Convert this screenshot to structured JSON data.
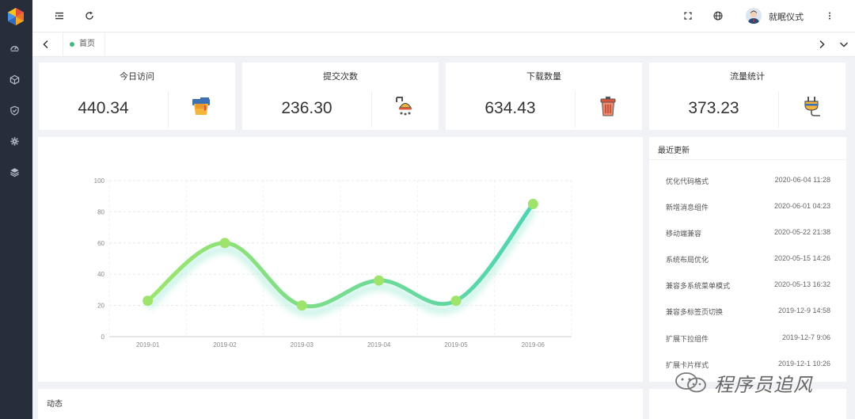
{
  "header": {
    "username": "就眠仪式"
  },
  "tabs": [
    {
      "label": "首页"
    }
  ],
  "stats": [
    {
      "title": "今日访问",
      "value": "440.34",
      "icon": "paint-bucket-icon"
    },
    {
      "title": "提交次数",
      "value": "236.30",
      "icon": "shower-icon"
    },
    {
      "title": "下载数量",
      "value": "634.43",
      "icon": "trash-can-icon"
    },
    {
      "title": "流量统计",
      "value": "373.23",
      "icon": "plug-icon"
    }
  ],
  "chart_data": {
    "type": "line",
    "categories": [
      "2019-01",
      "2019-02",
      "2019-03",
      "2019-04",
      "2019-05",
      "2019-06"
    ],
    "series": [
      {
        "values": [
          23,
          60,
          20,
          36,
          23,
          85
        ]
      }
    ],
    "ylim": [
      0,
      100
    ],
    "yticks": [
      "0",
      "20",
      "40",
      "60",
      "80",
      "100"
    ],
    "smooth": true,
    "grid": true,
    "colors": {
      "start": "#9ee46c",
      "end": "#4fd3b3",
      "point": "#9ee46c"
    }
  },
  "recent": {
    "title": "最近更新",
    "items": [
      {
        "name": "优化代码格式",
        "time": "2020-06-04 11:28"
      },
      {
        "name": "新增消息组件",
        "time": "2020-06-01 04:23"
      },
      {
        "name": "移动端兼容",
        "time": "2020-05-22 21:38"
      },
      {
        "name": "系统布局优化",
        "time": "2020-05-15 14:26"
      },
      {
        "name": "兼容多系统菜单模式",
        "time": "2020-05-13 16:32"
      },
      {
        "name": "兼容多标签页切换",
        "time": "2019-12-9 14:58"
      },
      {
        "name": "扩展下拉组件",
        "time": "2019-12-7 9:06"
      },
      {
        "name": "扩展卡片样式",
        "time": "2019-12-1 10:26"
      }
    ]
  },
  "dynamic": {
    "title": "动态"
  },
  "watermark": {
    "text": "程序员追风"
  }
}
